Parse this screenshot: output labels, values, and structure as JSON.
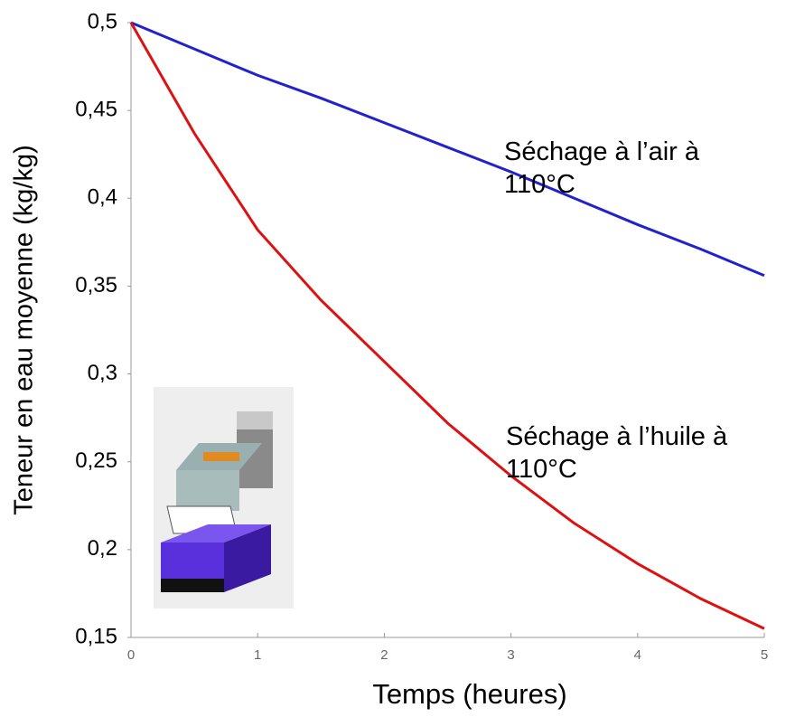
{
  "chart_data": {
    "type": "line",
    "xlabel": "Temps (heures)",
    "ylabel": "Teneur en eau moyenne (kg/kg)",
    "x": [
      0,
      0.5,
      1,
      1.5,
      2,
      2.5,
      3,
      3.5,
      4,
      4.5,
      5
    ],
    "series": [
      {
        "name": "Séchage à l’air à 110°C",
        "color": "#2222cc",
        "values": [
          0.5,
          0.485,
          0.47,
          0.457,
          0.443,
          0.429,
          0.415,
          0.4,
          0.385,
          0.371,
          0.356
        ]
      },
      {
        "name": "Séchage à l’huile à 110°C",
        "color": "#dd1111",
        "values": [
          0.5,
          0.437,
          0.382,
          0.342,
          0.307,
          0.272,
          0.242,
          0.215,
          0.192,
          0.172,
          0.155
        ]
      }
    ],
    "xlim": [
      0,
      5
    ],
    "ylim": [
      0.15,
      0.5
    ],
    "xticks": [
      0,
      1,
      2,
      3,
      4,
      5
    ],
    "yticks": [
      {
        "value": 0.15,
        "label": "0,15"
      },
      {
        "value": 0.2,
        "label": "0,2"
      },
      {
        "value": 0.25,
        "label": "0,25"
      },
      {
        "value": 0.3,
        "label": "0,3"
      },
      {
        "value": 0.35,
        "label": "0,35"
      },
      {
        "value": 0.4,
        "label": "0,4"
      },
      {
        "value": 0.45,
        "label": "0,45"
      },
      {
        "value": 0.5,
        "label": "0,5"
      }
    ]
  }
}
